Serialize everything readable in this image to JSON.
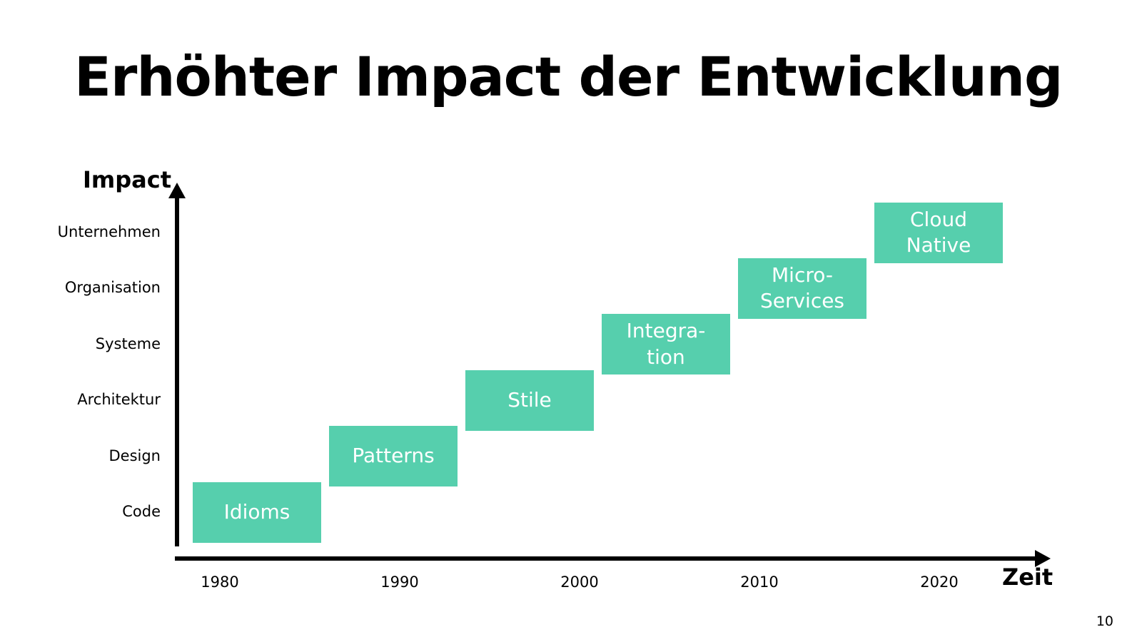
{
  "slide": {
    "title": "Erhöhter Impact der Entwicklung",
    "page_number": "10"
  },
  "chart_data": {
    "type": "step-diagram",
    "y_axis_label": "Impact",
    "x_axis_label": "Zeit",
    "y_levels": [
      "Code",
      "Design",
      "Architektur",
      "Systeme",
      "Organisation",
      "Unternehmen"
    ],
    "x_ticks": [
      "1980",
      "1990",
      "2000",
      "2010",
      "2020"
    ],
    "steps": [
      {
        "label": "Idioms",
        "level": "Code"
      },
      {
        "label": "Patterns",
        "level": "Design"
      },
      {
        "label": "Stile",
        "level": "Architektur"
      },
      {
        "label": "Integra-\ntion",
        "level": "Systeme"
      },
      {
        "label": "Micro-\nServices",
        "level": "Organisation"
      },
      {
        "label": "Cloud\nNative",
        "level": "Unternehmen"
      }
    ],
    "colors": {
      "box": "#56cfad",
      "box_text": "#ffffff",
      "axis": "#000000"
    }
  }
}
